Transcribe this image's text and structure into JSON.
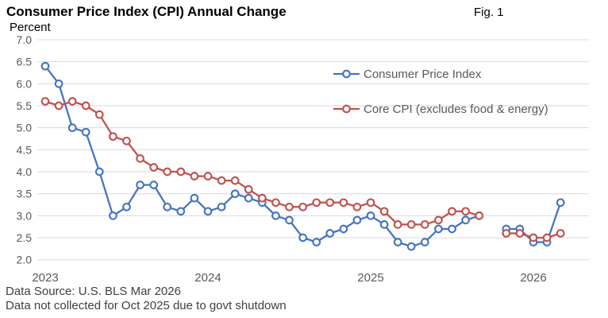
{
  "header": {
    "title": "Consumer Price Index (CPI) Annual Change",
    "figure_label": "Fig. 1",
    "y_axis_unit": "Percent"
  },
  "footer": {
    "source": "Data Source: U.S. BLS Mar 2026",
    "note": "Data not collected for Oct 2025 due to govt shutdown"
  },
  "chart_data": {
    "type": "line",
    "title": "Consumer Price Index (CPI) Annual Change",
    "ylabel": "Percent",
    "ylim": [
      2.0,
      7.0
    ],
    "y_tick_labels": [
      "7.0",
      "6.5",
      "6.0",
      "5.5",
      "5.0",
      "4.5",
      "4.0",
      "3.5",
      "3.0",
      "2.5",
      "2.0"
    ],
    "x_range": "Jan 2023 to Mar 2026, monthly; Oct 2025 missing",
    "x_tick_labels": [
      {
        "label": "2023",
        "month_index": 0
      },
      {
        "label": "2024",
        "month_index": 12
      },
      {
        "label": "2025",
        "month_index": 24
      },
      {
        "label": "2026",
        "month_index": 36
      }
    ],
    "grid": "horizontal-only",
    "legend_position": "inside-top-right",
    "series": [
      {
        "name": "Consumer Price Index",
        "color": "#4472C4",
        "values": [
          6.4,
          6.0,
          5.0,
          4.9,
          4.0,
          3.0,
          3.2,
          3.7,
          3.7,
          3.2,
          3.1,
          3.4,
          3.1,
          3.2,
          3.5,
          3.4,
          3.3,
          3.0,
          2.9,
          2.5,
          2.4,
          2.6,
          2.7,
          2.9,
          3.0,
          2.8,
          2.4,
          2.3,
          2.4,
          2.7,
          2.7,
          2.9,
          3.0,
          null,
          2.7,
          2.7,
          2.4,
          2.4,
          3.3
        ]
      },
      {
        "name": "Core CPI (excludes food & energy)",
        "color": "#C0504D",
        "values": [
          5.6,
          5.5,
          5.6,
          5.5,
          5.3,
          4.8,
          4.7,
          4.3,
          4.1,
          4.0,
          4.0,
          3.9,
          3.9,
          3.8,
          3.8,
          3.6,
          3.4,
          3.3,
          3.2,
          3.2,
          3.3,
          3.3,
          3.3,
          3.2,
          3.3,
          3.1,
          2.8,
          2.8,
          2.8,
          2.9,
          3.1,
          3.1,
          3.0,
          null,
          2.6,
          2.6,
          2.5,
          2.5,
          2.6
        ]
      }
    ]
  },
  "colors": {
    "cpi_line": "#4472C4",
    "core_cpi_line": "#C0504D",
    "gridline": "#D9D9D9",
    "axis_text": "#595959",
    "legend_text": "#595959",
    "footer_text": "#3f3f3f",
    "title_text": "#000000",
    "background": "#ffffff"
  }
}
